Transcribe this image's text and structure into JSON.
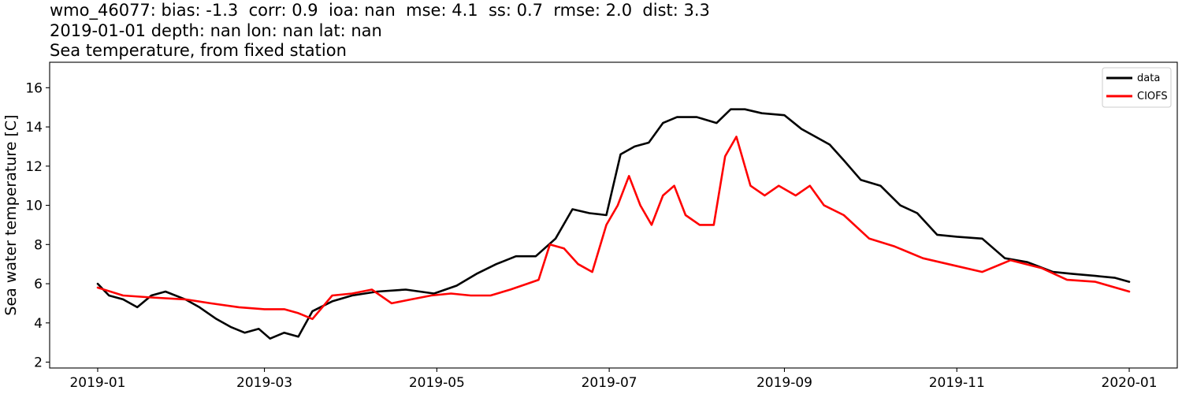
{
  "chart_data": {
    "type": "line",
    "title_lines": [
      "wmo_46077: bias: -1.3  corr: 0.9  ioa: nan  mse: 4.1  ss: 0.7  rmse: 2.0  dist: 3.3",
      "2019-01-01 depth: nan lon: nan lat: nan",
      "Sea temperature, from fixed station"
    ],
    "xlabel": "",
    "ylabel": "Sea water temperature [C]",
    "xlim": [
      "2018-12-15",
      "2020-01-18"
    ],
    "ylim": [
      1.7,
      17.3
    ],
    "x_ticks": [
      {
        "date": "2019-01-01",
        "label": "2019-01"
      },
      {
        "date": "2019-03-01",
        "label": "2019-03"
      },
      {
        "date": "2019-05-01",
        "label": "2019-05"
      },
      {
        "date": "2019-07-01",
        "label": "2019-07"
      },
      {
        "date": "2019-09-01",
        "label": "2019-09"
      },
      {
        "date": "2019-11-01",
        "label": "2019-11"
      },
      {
        "date": "2020-01-01",
        "label": "2020-01"
      }
    ],
    "y_ticks": [
      2,
      4,
      6,
      8,
      10,
      12,
      14,
      16
    ],
    "grid": false,
    "legend": "top-right",
    "series": [
      {
        "name": "data",
        "color": "#000000",
        "x": [
          "2019-01-01",
          "2019-01-05",
          "2019-01-10",
          "2019-01-15",
          "2019-01-20",
          "2019-01-25",
          "2019-02-01",
          "2019-02-06",
          "2019-02-12",
          "2019-02-17",
          "2019-02-22",
          "2019-02-27",
          "2019-03-03",
          "2019-03-08",
          "2019-03-13",
          "2019-03-18",
          "2019-03-25",
          "2019-04-01",
          "2019-04-10",
          "2019-04-20",
          "2019-04-30",
          "2019-05-08",
          "2019-05-15",
          "2019-05-22",
          "2019-05-29",
          "2019-06-05",
          "2019-06-12",
          "2019-06-18",
          "2019-06-24",
          "2019-06-30",
          "2019-07-05",
          "2019-07-10",
          "2019-07-15",
          "2019-07-20",
          "2019-07-25",
          "2019-08-01",
          "2019-08-08",
          "2019-08-13",
          "2019-08-18",
          "2019-08-24",
          "2019-09-01",
          "2019-09-07",
          "2019-09-12",
          "2019-09-17",
          "2019-09-22",
          "2019-09-28",
          "2019-10-05",
          "2019-10-12",
          "2019-10-18",
          "2019-10-25",
          "2019-11-01",
          "2019-11-10",
          "2019-11-18",
          "2019-11-26",
          "2019-12-05",
          "2019-12-12",
          "2019-12-20",
          "2019-12-27",
          "2020-01-01"
        ],
        "values": [
          6.0,
          5.4,
          5.2,
          4.8,
          5.4,
          5.6,
          5.2,
          4.8,
          4.2,
          3.8,
          3.5,
          3.7,
          3.2,
          3.5,
          3.3,
          4.6,
          5.1,
          5.4,
          5.6,
          5.7,
          5.5,
          5.9,
          6.5,
          7.0,
          7.4,
          7.4,
          8.3,
          9.8,
          9.6,
          9.5,
          12.6,
          13.0,
          13.2,
          14.2,
          14.5,
          14.5,
          14.2,
          14.9,
          14.9,
          14.7,
          14.6,
          13.9,
          13.5,
          13.1,
          12.3,
          11.3,
          11.0,
          10.0,
          9.6,
          8.5,
          8.4,
          8.3,
          7.3,
          7.1,
          6.6,
          6.5,
          6.4,
          6.3,
          6.1
        ]
      },
      {
        "name": "CIOFS",
        "color": "#ff0000",
        "x": [
          "2019-01-01",
          "2019-01-10",
          "2019-01-20",
          "2019-02-01",
          "2019-02-10",
          "2019-02-20",
          "2019-03-01",
          "2019-03-08",
          "2019-03-13",
          "2019-03-18",
          "2019-03-25",
          "2019-04-01",
          "2019-04-08",
          "2019-04-15",
          "2019-04-22",
          "2019-04-29",
          "2019-05-06",
          "2019-05-13",
          "2019-05-20",
          "2019-05-27",
          "2019-06-02",
          "2019-06-06",
          "2019-06-10",
          "2019-06-15",
          "2019-06-20",
          "2019-06-25",
          "2019-06-30",
          "2019-07-04",
          "2019-07-08",
          "2019-07-12",
          "2019-07-16",
          "2019-07-20",
          "2019-07-24",
          "2019-07-28",
          "2019-08-02",
          "2019-08-07",
          "2019-08-11",
          "2019-08-15",
          "2019-08-20",
          "2019-08-25",
          "2019-08-30",
          "2019-09-05",
          "2019-09-10",
          "2019-09-15",
          "2019-09-22",
          "2019-10-01",
          "2019-10-10",
          "2019-10-20",
          "2019-11-01",
          "2019-11-10",
          "2019-11-20",
          "2019-12-01",
          "2019-12-10",
          "2019-12-20",
          "2020-01-01"
        ],
        "values": [
          5.8,
          5.4,
          5.3,
          5.2,
          5.0,
          4.8,
          4.7,
          4.7,
          4.5,
          4.2,
          5.4,
          5.5,
          5.7,
          5.0,
          5.2,
          5.4,
          5.5,
          5.4,
          5.4,
          5.7,
          6.0,
          6.2,
          8.0,
          7.8,
          7.0,
          6.6,
          9.0,
          10.0,
          11.5,
          10.0,
          9.0,
          10.5,
          11.0,
          9.5,
          9.0,
          9.0,
          12.5,
          13.5,
          11.0,
          10.5,
          11.0,
          10.5,
          11.0,
          10.0,
          9.5,
          8.3,
          7.9,
          7.3,
          6.9,
          6.6,
          7.2,
          6.8,
          6.2,
          6.1,
          5.6
        ]
      }
    ]
  }
}
